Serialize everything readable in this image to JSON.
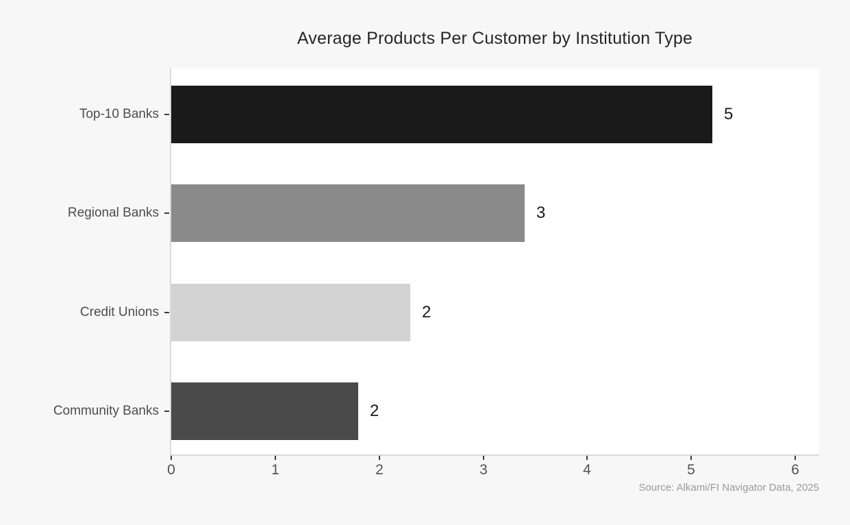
{
  "chart_data": {
    "type": "bar",
    "orientation": "horizontal",
    "title": "Average Products Per Customer by Institution Type",
    "categories": [
      "Top-10 Banks",
      "Regional Banks",
      "Credit Unions",
      "Community Banks"
    ],
    "values": [
      5.2,
      3.4,
      2.3,
      1.8
    ],
    "bar_labels": [
      "5",
      "3",
      "2",
      "2"
    ],
    "bar_colors": [
      "#1a1a1a",
      "#8a8a8a",
      "#d3d3d3",
      "#4a4a4a"
    ],
    "xlabel": "",
    "ylabel": "",
    "xlim": [
      0,
      6.23
    ],
    "x_ticks": [
      0,
      1,
      2,
      3,
      4,
      5,
      6
    ],
    "grid": false,
    "legend": false,
    "annotation": "Source: Alkami/FI Navigator Data, 2025",
    "colors": {
      "figure_background": "#f7f7f7",
      "plot_background": "#ffffff",
      "spine": "#d9d9d9",
      "tick_mark": "#3a3a3a",
      "tick_label": "#525252",
      "category_label": "#4d4d4d",
      "value_label": "#1a1a1a",
      "title": "#262626",
      "source": "#9a9a9a"
    }
  }
}
